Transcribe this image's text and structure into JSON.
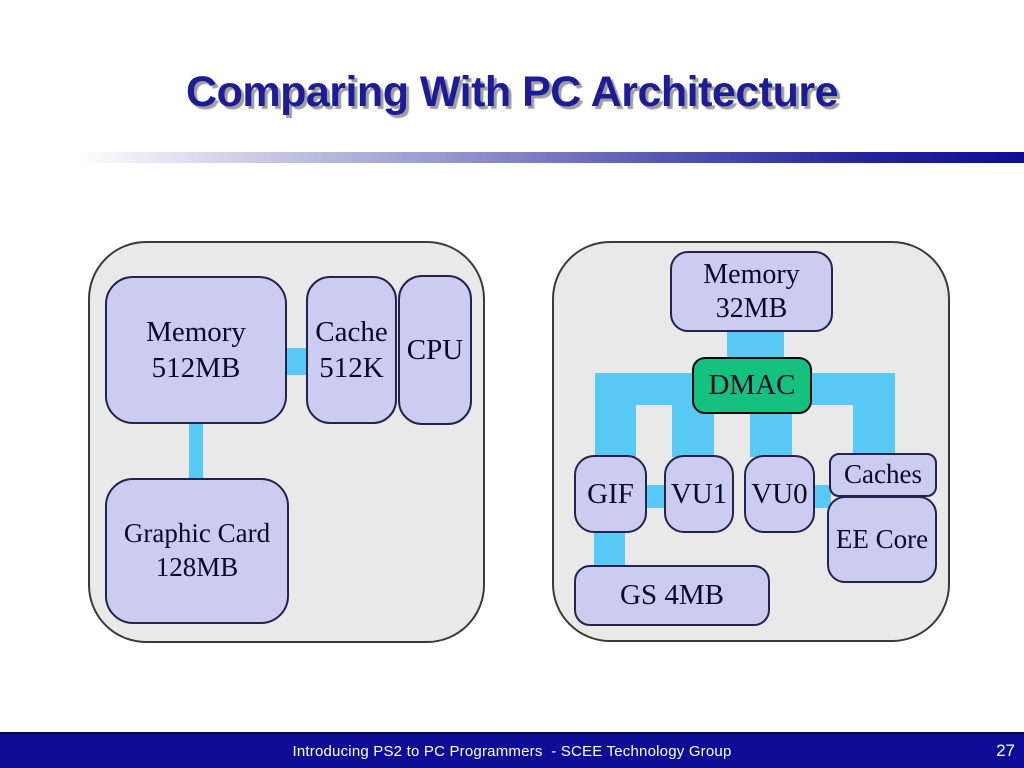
{
  "title": {
    "text": "Comparing With PC Architecture"
  },
  "footer": {
    "text": "Introducing PS2 to PC Programmers  - SCEE Technology Group",
    "page_number": "27"
  },
  "colors": {
    "title_navy": "#1C1C96",
    "footer_navy": "#0D0D97",
    "connector_cyan": "#58C8F4",
    "node_lavender": "#CCCCF0",
    "node_border": "#23234F",
    "node_text": "#0A0A28",
    "dmac_green": "#15C17F",
    "container_gray": "#E9E9E9",
    "container_border": "#3A3A3A"
  },
  "pc_diagram": {
    "boxes": {
      "memory": {
        "line1": "Memory",
        "line2": "512MB"
      },
      "cache": {
        "line1": "Cache",
        "line2": "512K"
      },
      "cpu": {
        "line1": "CPU"
      },
      "graphic_card": {
        "line1": "Graphic Card",
        "line2": "128MB"
      }
    },
    "connections": [
      {
        "from": "memory",
        "to": "cache"
      },
      {
        "from": "memory",
        "to": "graphic_card"
      }
    ]
  },
  "ps2_diagram": {
    "boxes": {
      "memory": {
        "line1": "Memory",
        "line2": "32MB"
      },
      "dmac": {
        "line1": "DMAC"
      },
      "gif": {
        "line1": "GIF"
      },
      "vu1": {
        "line1": "VU1"
      },
      "vu0": {
        "line1": "VU0"
      },
      "caches": {
        "line1": "Caches"
      },
      "ee_core": {
        "line1": "EE Core"
      },
      "gs": {
        "line1": "GS 4MB"
      }
    },
    "connections": [
      {
        "from": "memory",
        "to": "dmac"
      },
      {
        "from": "dmac",
        "to": "gif"
      },
      {
        "from": "dmac",
        "to": "vu1"
      },
      {
        "from": "dmac",
        "to": "vu0"
      },
      {
        "from": "dmac",
        "to": "caches"
      },
      {
        "from": "gif",
        "to": "vu1"
      },
      {
        "from": "vu0",
        "to": "caches"
      },
      {
        "from": "gif",
        "to": "gs"
      }
    ]
  }
}
